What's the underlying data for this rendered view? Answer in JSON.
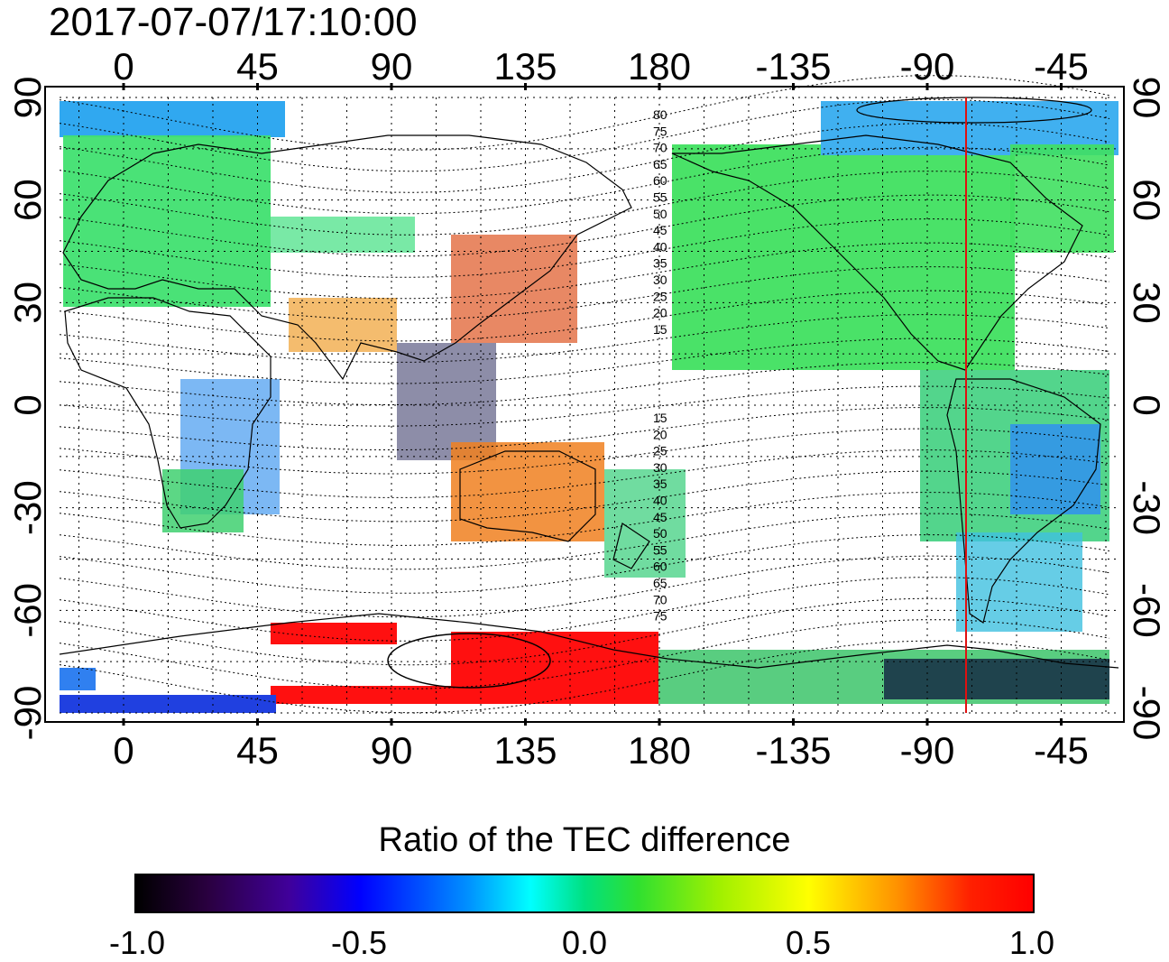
{
  "timestamp": "2017-07-07/17:10:00",
  "map": {
    "top_lon_labels": [
      "0",
      "45",
      "90",
      "135",
      "180",
      "-135",
      "-90",
      "-45"
    ],
    "bottom_lon_labels": [
      "0",
      "45",
      "90",
      "135",
      "180",
      "-135",
      "-90",
      "-45"
    ],
    "left_lat_labels": [
      "90",
      "60",
      "30",
      "0",
      "-30",
      "-60",
      "-90"
    ],
    "right_lat_labels": [
      "90",
      "60",
      "30",
      "0",
      "-30",
      "-60",
      "-90"
    ],
    "contour_labels_north": [
      "80",
      "75",
      "70",
      "65",
      "60",
      "55",
      "50",
      "45",
      "40",
      "35",
      "30",
      "25",
      "20",
      "15"
    ],
    "contour_labels_south": [
      "15",
      "20",
      "25",
      "30",
      "35",
      "40",
      "45",
      "50",
      "55",
      "60",
      "65",
      "70",
      "75"
    ],
    "marker_line_color": "#e01010",
    "marker_line_longitude": -75
  },
  "colorbar": {
    "title": "Ratio of the TEC difference",
    "ticks": [
      "-1.0",
      "-0.5",
      "0.0",
      "0.5",
      "1.0"
    ],
    "colors": [
      "#000000",
      "#40009a",
      "#0000ff",
      "#00ffff",
      "#30e030",
      "#ffff00",
      "#ff0000"
    ]
  }
}
